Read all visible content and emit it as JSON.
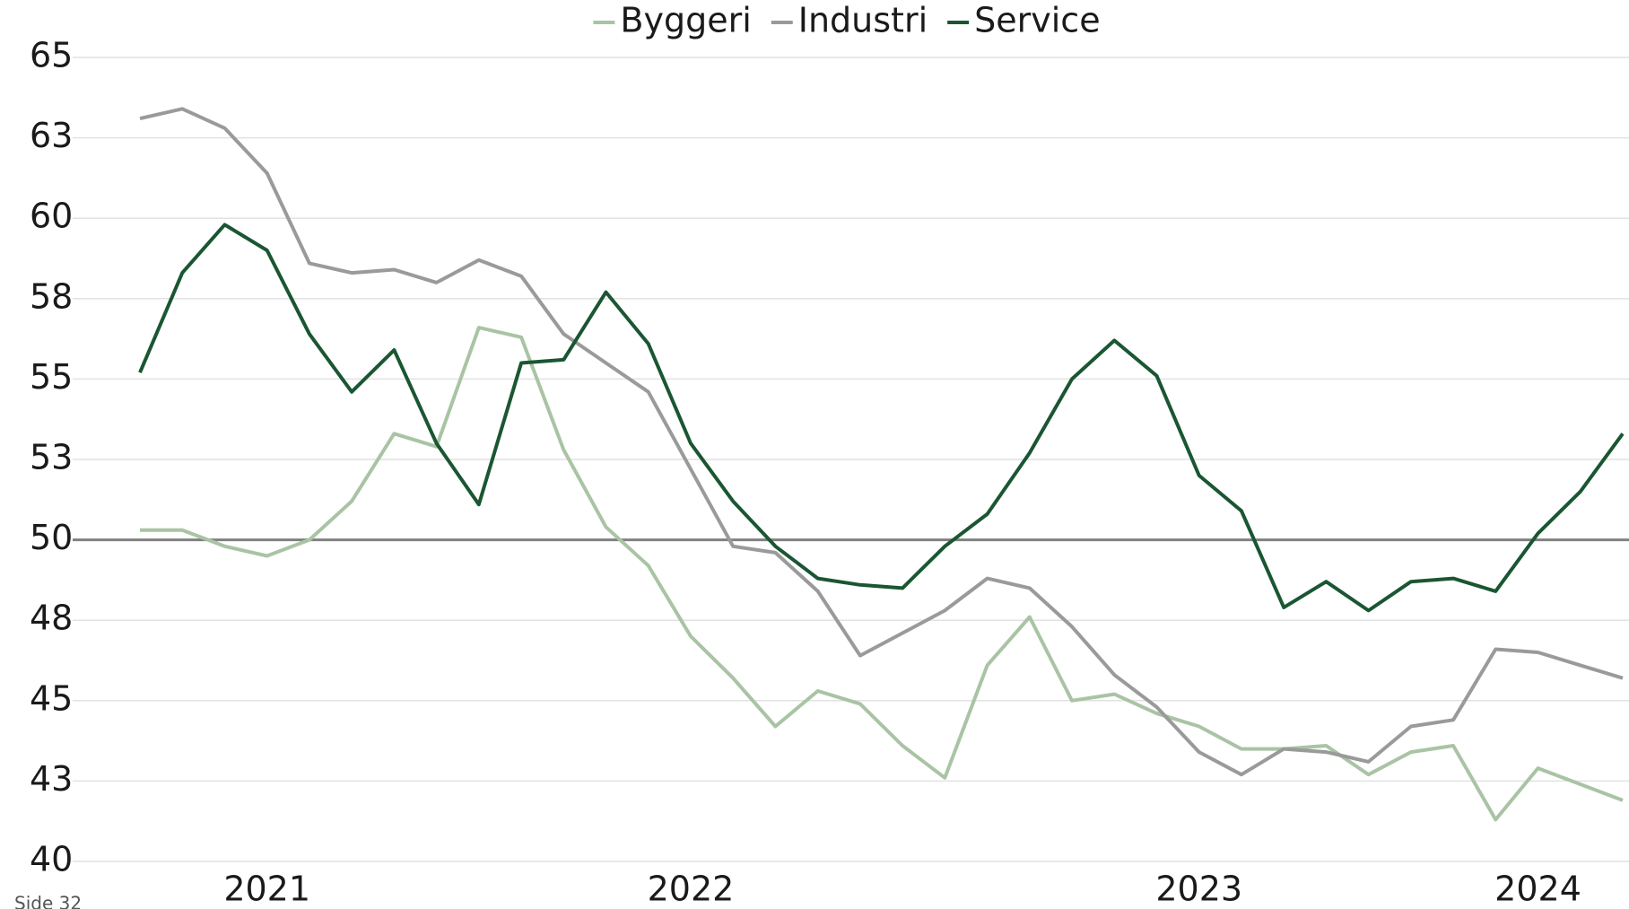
{
  "chart_data": {
    "type": "line",
    "categories": [
      null,
      null,
      null,
      "2021",
      null,
      null,
      null,
      null,
      null,
      null,
      null,
      null,
      null,
      "2022",
      null,
      null,
      null,
      null,
      null,
      null,
      null,
      null,
      null,
      null,
      null,
      "2023",
      null,
      null,
      null,
      null,
      null,
      null,
      null,
      "2024",
      null,
      null
    ],
    "series": [
      {
        "name": "Byggeri",
        "color": "#a9c4a4",
        "values": [
          50.3,
          50.3,
          49.8,
          49.5,
          50.0,
          51.2,
          53.3,
          52.9,
          56.6,
          56.3,
          52.8,
          50.4,
          49.2,
          47.0,
          45.7,
          44.2,
          45.3,
          44.9,
          43.6,
          42.6,
          46.1,
          47.6,
          45.0,
          45.2,
          44.6,
          44.2,
          43.5,
          43.5,
          43.6,
          42.7,
          43.4,
          43.6,
          41.3,
          42.9,
          42.4,
          41.9
        ]
      },
      {
        "name": "Industri",
        "color": "#9a9a9a",
        "values": [
          63.1,
          63.4,
          62.8,
          61.4,
          58.6,
          58.3,
          58.4,
          58.0,
          58.7,
          58.2,
          56.4,
          55.5,
          54.6,
          52.2,
          49.8,
          49.6,
          48.4,
          46.4,
          47.1,
          47.8,
          48.8,
          48.5,
          47.3,
          45.8,
          44.8,
          43.4,
          42.7,
          43.5,
          43.4,
          43.1,
          44.2,
          44.4,
          46.6,
          46.5,
          46.1,
          45.7
        ]
      },
      {
        "name": "Service",
        "color": "#1a5632",
        "values": [
          55.2,
          58.3,
          59.8,
          59.0,
          56.4,
          54.6,
          55.9,
          53.0,
          51.1,
          55.5,
          55.6,
          57.7,
          56.1,
          53.0,
          51.2,
          49.8,
          48.8,
          48.6,
          48.5,
          49.8,
          50.8,
          52.7,
          55.0,
          56.2,
          55.1,
          52.0,
          50.9,
          47.9,
          48.7,
          47.8,
          48.7,
          48.8,
          48.4,
          50.2,
          51.5,
          53.3
        ]
      }
    ],
    "ylim": [
      40,
      65
    ],
    "yticks": [
      40,
      {
        "value": 42.5,
        "label": "43"
      },
      45,
      {
        "value": 47.5,
        "label": "48"
      },
      50,
      {
        "value": 52.5,
        "label": "53"
      },
      55,
      {
        "value": 57.5,
        "label": "58"
      },
      60,
      {
        "value": 62.5,
        "label": "63"
      },
      65
    ],
    "baseline": 50,
    "grid": true,
    "legend": "top",
    "footnote": "Side 32"
  }
}
